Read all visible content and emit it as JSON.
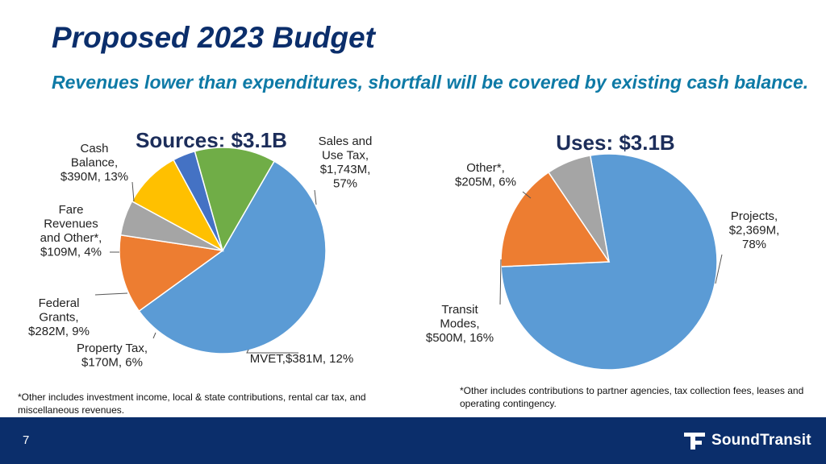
{
  "slide": {
    "title": "Proposed 2023 Budget",
    "subtitle": "Revenues lower than expenditures, shortfall will be covered by existing cash balance.",
    "page_number": "7",
    "footnote_sources": "*Other includes investment income, local & state contributions, rental car tax, and miscellaneous revenues.",
    "footnote_uses": "*Other includes contributions to partner agencies, tax collection fees, leases and operating contingency.",
    "logo_text": "SoundTransit",
    "colors": {
      "footer": "#0b2e6b",
      "title": "#0b2e6b",
      "subtitle": "#0e7aa6"
    }
  },
  "chart_data": [
    {
      "type": "pie",
      "title": "Sources: $3.1B",
      "slices": [
        {
          "name": "Sales and Use Tax",
          "value": 1743,
          "percent": 57,
          "color": "#5b9bd5",
          "label_lines": [
            "Sales and",
            "Use Tax,",
            "$1,743M,",
            "57%"
          ]
        },
        {
          "name": "MVET",
          "value": 381,
          "percent": 12,
          "color": "#ed7d31",
          "label_lines": [
            "MVET,$381M, 12%"
          ]
        },
        {
          "name": "Property Tax",
          "value": 170,
          "percent": 6,
          "color": "#a5a5a5",
          "label_lines": [
            "Property Tax,",
            "$170M, 6%"
          ]
        },
        {
          "name": "Federal Grants",
          "value": 282,
          "percent": 9,
          "color": "#ffc000",
          "label_lines": [
            "Federal",
            "Grants,",
            "$282M, 9%"
          ]
        },
        {
          "name": "Fare Revenues and Other*",
          "value": 109,
          "percent": 4,
          "color": "#4472c4",
          "label_lines": [
            "Fare",
            "Revenues",
            "and Other*,",
            "$109M, 4%"
          ]
        },
        {
          "name": "Cash Balance",
          "value": 390,
          "percent": 13,
          "color": "#70ad47",
          "label_lines": [
            "Cash",
            "Balance,",
            "$390M, 13%"
          ]
        }
      ]
    },
    {
      "type": "pie",
      "title": "Uses: $3.1B",
      "slices": [
        {
          "name": "Projects",
          "value": 2369,
          "percent": 78,
          "color": "#5b9bd5",
          "label_lines": [
            "Projects,",
            "$2,369M,",
            "78%"
          ]
        },
        {
          "name": "Transit Modes",
          "value": 500,
          "percent": 16,
          "color": "#ed7d31",
          "label_lines": [
            "Transit",
            "Modes,",
            "$500M, 16%"
          ]
        },
        {
          "name": "Other*",
          "value": 205,
          "percent": 6,
          "color": "#a5a5a5",
          "label_lines": [
            "Other*,",
            "$205M, 6%"
          ]
        }
      ]
    }
  ]
}
